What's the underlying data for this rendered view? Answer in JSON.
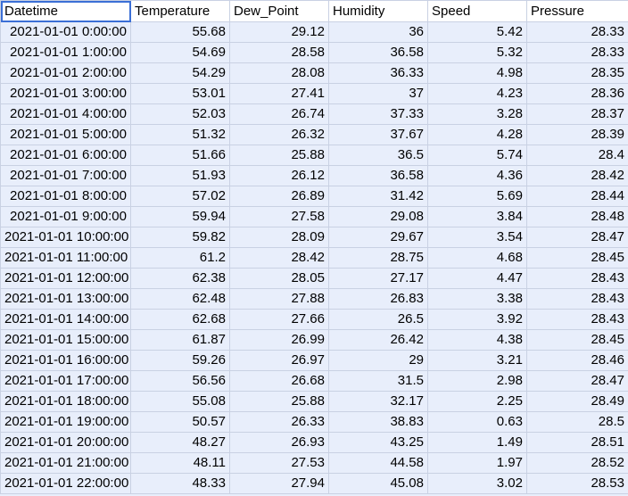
{
  "headers": [
    "Datetime",
    "Temperature",
    "Dew_Point",
    "Humidity",
    "Speed",
    "Pressure"
  ],
  "rows": [
    [
      "2021-01-01 0:00:00",
      "55.68",
      "29.12",
      "36",
      "5.42",
      "28.33"
    ],
    [
      "2021-01-01 1:00:00",
      "54.69",
      "28.58",
      "36.58",
      "5.32",
      "28.33"
    ],
    [
      "2021-01-01 2:00:00",
      "54.29",
      "28.08",
      "36.33",
      "4.98",
      "28.35"
    ],
    [
      "2021-01-01 3:00:00",
      "53.01",
      "27.41",
      "37",
      "4.23",
      "28.36"
    ],
    [
      "2021-01-01 4:00:00",
      "52.03",
      "26.74",
      "37.33",
      "3.28",
      "28.37"
    ],
    [
      "2021-01-01 5:00:00",
      "51.32",
      "26.32",
      "37.67",
      "4.28",
      "28.39"
    ],
    [
      "2021-01-01 6:00:00",
      "51.66",
      "25.88",
      "36.5",
      "5.74",
      "28.4"
    ],
    [
      "2021-01-01 7:00:00",
      "51.93",
      "26.12",
      "36.58",
      "4.36",
      "28.42"
    ],
    [
      "2021-01-01 8:00:00",
      "57.02",
      "26.89",
      "31.42",
      "5.69",
      "28.44"
    ],
    [
      "2021-01-01 9:00:00",
      "59.94",
      "27.58",
      "29.08",
      "3.84",
      "28.48"
    ],
    [
      "2021-01-01 10:00:00",
      "59.82",
      "28.09",
      "29.67",
      "3.54",
      "28.47"
    ],
    [
      "2021-01-01 11:00:00",
      "61.2",
      "28.42",
      "28.75",
      "4.68",
      "28.45"
    ],
    [
      "2021-01-01 12:00:00",
      "62.38",
      "28.05",
      "27.17",
      "4.47",
      "28.43"
    ],
    [
      "2021-01-01 13:00:00",
      "62.48",
      "27.88",
      "26.83",
      "3.38",
      "28.43"
    ],
    [
      "2021-01-01 14:00:00",
      "62.68",
      "27.66",
      "26.5",
      "3.92",
      "28.43"
    ],
    [
      "2021-01-01 15:00:00",
      "61.87",
      "26.99",
      "26.42",
      "4.38",
      "28.45"
    ],
    [
      "2021-01-01 16:00:00",
      "59.26",
      "26.97",
      "29",
      "3.21",
      "28.46"
    ],
    [
      "2021-01-01 17:00:00",
      "56.56",
      "26.68",
      "31.5",
      "2.98",
      "28.47"
    ],
    [
      "2021-01-01 18:00:00",
      "55.08",
      "25.88",
      "32.17",
      "2.25",
      "28.49"
    ],
    [
      "2021-01-01 19:00:00",
      "50.57",
      "26.33",
      "38.83",
      "0.63",
      "28.5"
    ],
    [
      "2021-01-01 20:00:00",
      "48.27",
      "26.93",
      "43.25",
      "1.49",
      "28.51"
    ],
    [
      "2021-01-01 21:00:00",
      "48.11",
      "27.53",
      "44.58",
      "1.97",
      "28.52"
    ],
    [
      "2021-01-01 22:00:00",
      "48.33",
      "27.94",
      "45.08",
      "3.02",
      "28.53"
    ]
  ],
  "selected_cell": "Datetime",
  "colors": {
    "selection_border": "#3b6fd6",
    "cell_background": "#e8eefb",
    "header_background": "#ffffff",
    "grid_line": "#c9d1e3"
  }
}
